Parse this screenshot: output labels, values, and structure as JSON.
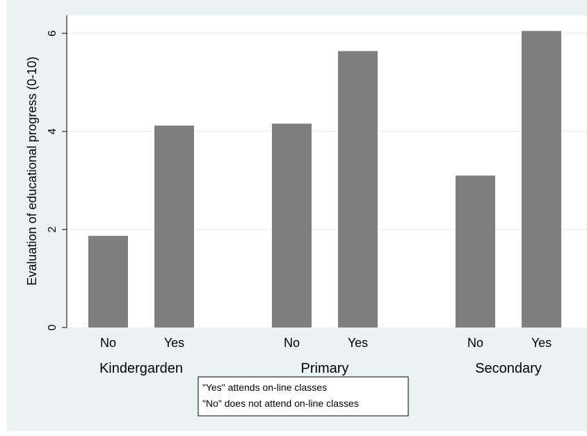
{
  "chart_data": {
    "type": "bar",
    "ylabel": "Evaluation of educational progress (0-10)",
    "ylim": [
      0,
      6.3
    ],
    "yticks": [
      0,
      2,
      4,
      6
    ],
    "grid": true,
    "groups": [
      "Kindergarden",
      "Primary",
      "Secondary"
    ],
    "subcategories": [
      "No",
      "Yes"
    ],
    "values": [
      [
        1.87,
        4.12
      ],
      [
        4.16,
        5.64
      ],
      [
        3.1,
        6.05
      ]
    ],
    "legend_lines": [
      "\"Yes\" attends on-line classes",
      "\"No\" does not attend on-line classes"
    ],
    "legend_placement": "bottom-center",
    "colors": {
      "bar": "#7f7f7f",
      "plot_bg": "#ffffff",
      "outer_bg": "#eaf2f3",
      "grid": "#eaf2f3"
    }
  }
}
